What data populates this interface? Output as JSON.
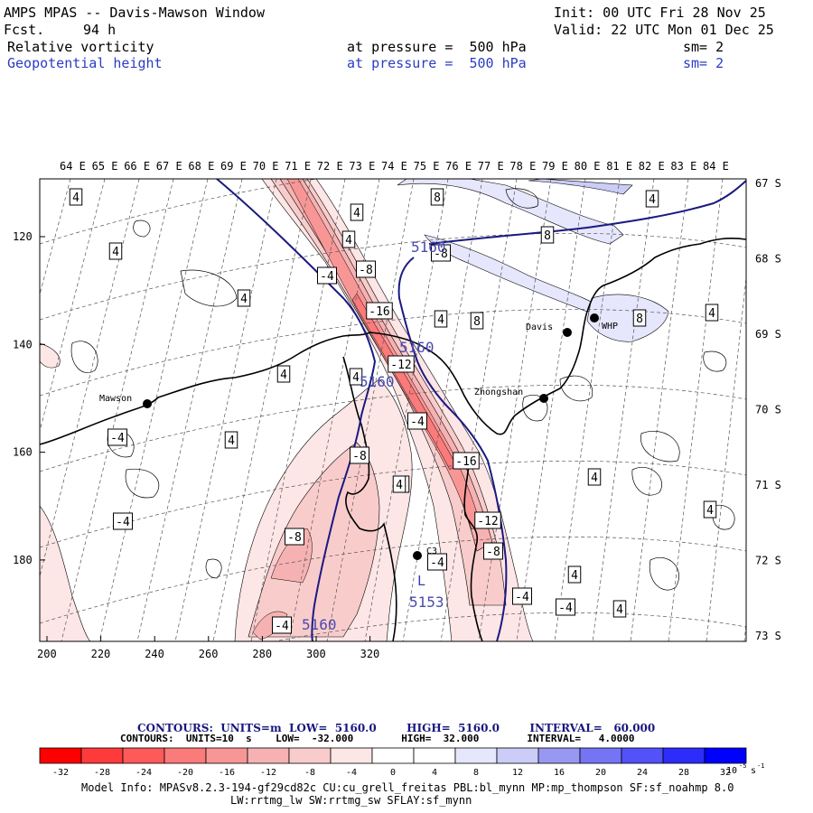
{
  "header": {
    "title": "AMPS MPAS -- Davis-Mawson Window",
    "fcst_label": "Fcst.",
    "fcst_value": "94 h",
    "init": "Init: 00 UTC Fri 28 Nov 25",
    "valid": "Valid: 22 UTC Mon 01 Dec 25",
    "field1": "Relative vorticity",
    "field1_level": "at pressure =  500 hPa",
    "field1_sm": "sm= 2",
    "field2": "Geopotential height",
    "field2_level": "at pressure =  500 hPa",
    "field2_sm": "sm= 2"
  },
  "axes": {
    "top_lon": [
      "64 E",
      "65 E",
      "66 E",
      "67 E",
      "68 E",
      "69 E",
      "70 E",
      "71 E",
      "72 E",
      "73 E",
      "74 E",
      "75 E",
      "76 E",
      "77 E",
      "78 E",
      "79 E",
      "80 E",
      "81 E",
      "82 E",
      "83 E",
      "84 E"
    ],
    "right_lat": [
      "67 S",
      "68 S",
      "69 S",
      "70 S",
      "71 S",
      "72 S",
      "73 S"
    ],
    "left_ticks": [
      "120",
      "140",
      "160",
      "180"
    ],
    "bottom_ticks": [
      "200",
      "220",
      "240",
      "260",
      "280",
      "300",
      "320"
    ]
  },
  "stations": [
    "Davis",
    "WHP",
    "Mawson",
    "Zhongshan",
    "C3"
  ],
  "vorticity_labels": [
    "4",
    "4",
    "4",
    "8",
    "4",
    "8",
    "4",
    "-4",
    "-8",
    "-8",
    "4",
    "4",
    "-16",
    "4",
    "8",
    "8",
    "4",
    "-12",
    "4",
    "4",
    "-4",
    "-4",
    "4",
    "4",
    "-8",
    "-16",
    "4",
    "-4",
    "-4",
    "4",
    "-8",
    "-12",
    "-8",
    "-4",
    "4",
    "-4",
    "4",
    "-4"
  ],
  "height_labels": [
    "5160",
    "5160",
    "5160",
    "5160"
  ],
  "high_low": {
    "low_mark": "L",
    "low_value": "5153"
  },
  "footer": {
    "contours1": "CONTOURS:  UNITS=m  LOW=  5160.0        HIGH=  5160.0        INTERVAL=   60.000",
    "contours2": "CONTOURS:  UNITS=10  s    LOW=  -32.000        HIGH=  32.000        INTERVAL=   4.0000",
    "colorbar_ticks": [
      "-32",
      "-28",
      "-24",
      "-20",
      "-16",
      "-12",
      "-8",
      "-4",
      "0",
      "4",
      "8",
      "12",
      "16",
      "20",
      "24",
      "28",
      "32"
    ],
    "colorbar_unit": "10",
    "colorbar_colors": [
      "#ff0000",
      "#ff3a3a",
      "#ff5a5a",
      "#fb7a7a",
      "#f89696",
      "#f6b2b2",
      "#f9cccc",
      "#fde6e6",
      "#ffffff",
      "#ffffff",
      "#e6e6fd",
      "#ccccf9",
      "#9898f3",
      "#7474f5",
      "#5252f8",
      "#2c2cfb",
      "#0000ff"
    ],
    "model_info1": "Model Info: MPASv8.2.3-194-gf29cd82c CU:cu_grell_freitas PBL:bl_mynn MP:mp_thompson SF:sf_noahmp 8.0",
    "model_info2": "LW:rrtmg_lw SW:rrtmg_sw SFLAY:sf_mynn"
  }
}
